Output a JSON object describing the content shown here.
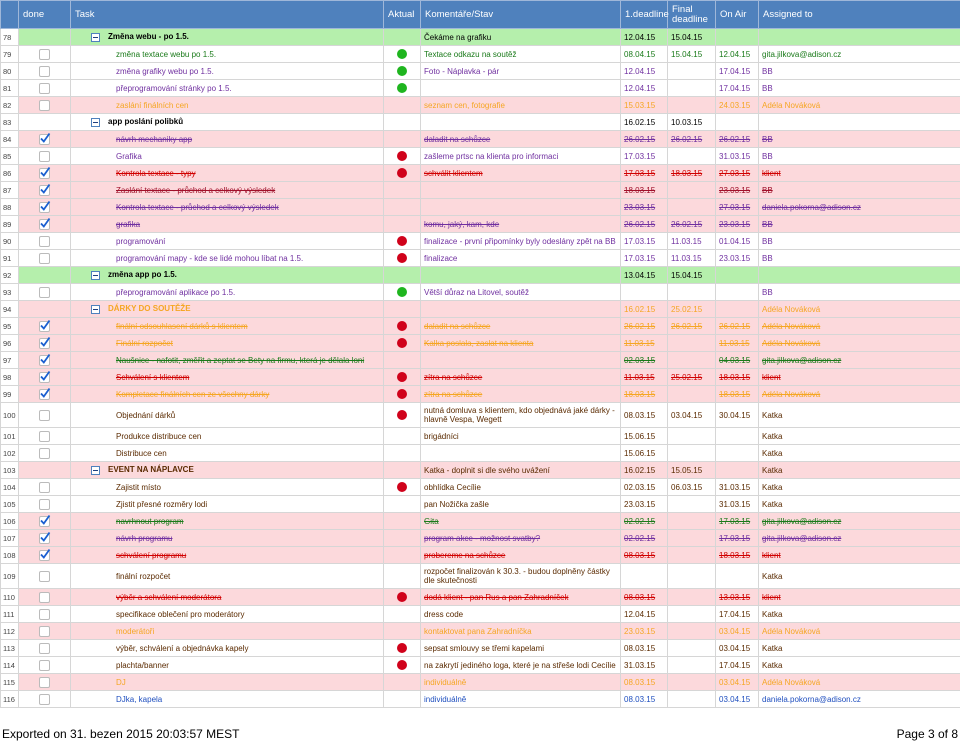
{
  "table": {
    "headers": [
      "done",
      "Task",
      "Aktual",
      "Komentáře/Stav",
      "1.deadline",
      "Final deadline",
      "On Air",
      "Assigned to"
    ],
    "rows": [
      {
        "n": 78,
        "group": true,
        "bg": "green",
        "color": "#000000",
        "task": "Změna webu - po 1.5.",
        "comment": "Čekáme na grafiku",
        "d1": "12.04.15",
        "final": "15.04.15"
      },
      {
        "n": 79,
        "bg": "white",
        "color": "#1a7a1a",
        "dot": "green",
        "task": "změna textace webu po 1.5.",
        "comment": "Textace odkazu na soutěž",
        "d1": "08.04.15",
        "final": "15.04.15",
        "air": "12.04.15",
        "who": "gita.jilkova@adison.cz"
      },
      {
        "n": 80,
        "bg": "white",
        "color": "#7030a0",
        "dot": "green",
        "task": "změna grafiky webu po 1.5.",
        "comment": "Foto - Náplavka - pár",
        "d1": "12.04.15",
        "air": "17.04.15",
        "who": "BB"
      },
      {
        "n": 81,
        "bg": "white",
        "color": "#7030a0",
        "dot": "green",
        "task": "přeprogramování stránky po 1.5.",
        "d1": "12.04.15",
        "air": "17.04.15",
        "who": "BB"
      },
      {
        "n": 82,
        "bg": "pink",
        "color": "#f5a623",
        "task": "zaslání finálních cen",
        "comment": "seznam cen, fotografie",
        "d1": "15.03.15",
        "air": "24.03.15",
        "who": "Adéla Nováková"
      },
      {
        "n": 83,
        "group": true,
        "bg": "white",
        "color": "#000000",
        "task": "app poslání polibků",
        "d1": "16.02.15",
        "final": "10.03.15"
      },
      {
        "n": 84,
        "done": true,
        "strike": true,
        "bg": "pink",
        "color": "#7030a0",
        "task": "návrh mechaniky app",
        "comment": "daladit na schůzce",
        "d1": "26.02.15",
        "final": "26.02.15",
        "air": "26.02.15",
        "who": "BB"
      },
      {
        "n": 85,
        "bg": "white",
        "color": "#7030a0",
        "dot": "red",
        "task": "Grafika",
        "comment": "zašleme prtsc na klienta pro informaci",
        "d1": "17.03.15",
        "air": "31.03.15",
        "who": "BB"
      },
      {
        "n": 86,
        "done": true,
        "strike": true,
        "bg": "pink",
        "color": "#d00000",
        "dot": "red",
        "task": "Kontrola textace - typy",
        "comment": "schválit klientem",
        "d1": "17.03.15",
        "final": "18.03.15",
        "air": "27.03.15",
        "who": "klient"
      },
      {
        "n": 87,
        "done": true,
        "strike": true,
        "bg": "pink",
        "color": "#a0102a",
        "task": "Zaslání textace - průchod a celkový výsledek",
        "d1": "18.03.15",
        "air": "23.03.15",
        "who": "BB"
      },
      {
        "n": 88,
        "done": true,
        "strike": true,
        "bg": "pink",
        "color": "#7030a0",
        "task": "Kontrola textace - průchod a celkový výsledek",
        "d1": "23.03.15",
        "air": "27.03.15",
        "who": "daniela.pokorna@adison.cz"
      },
      {
        "n": 89,
        "done": true,
        "strike": true,
        "bg": "pink",
        "color": "#7030a0",
        "task": "grafika",
        "comment": "komu, jaký, kam, kde",
        "d1": "26.02.15",
        "final": "26.02.15",
        "air": "23.03.15",
        "who": "BB"
      },
      {
        "n": 90,
        "bg": "white",
        "color": "#7030a0",
        "dot": "red",
        "task": "programování",
        "comment": "finalizace - první připomínky byly odeslány zpět na BB",
        "d1": "17.03.15",
        "final": "11.03.15",
        "air": "01.04.15",
        "who": "BB"
      },
      {
        "n": 91,
        "bg": "white",
        "color": "#7030a0",
        "dot": "red",
        "task": "programování mapy - kde se lidé mohou líbat na 1.5.",
        "comment": "finalizace",
        "d1": "17.03.15",
        "final": "11.03.15",
        "air": "23.03.15",
        "who": "BB"
      },
      {
        "n": 92,
        "group": true,
        "bg": "green",
        "color": "#000000",
        "task": "změna app po 1.5.",
        "d1": "13.04.15",
        "final": "15.04.15"
      },
      {
        "n": 93,
        "bg": "white",
        "color": "#7030a0",
        "dot": "green",
        "task": "přeprogramování aplikace po 1.5.",
        "comment": "Větší důraz na Litovel, soutěž",
        "who": "BB"
      },
      {
        "n": 94,
        "group": true,
        "bg": "pink",
        "color": "#f5a623",
        "task": "DÁRKY DO SOUTĚŽE",
        "d1": "16.02.15",
        "final": "25.02.15",
        "who": "Adéla Nováková"
      },
      {
        "n": 95,
        "done": true,
        "strike": true,
        "bg": "pink",
        "color": "#f5a623",
        "dot": "red",
        "task": "finální odsouhlasení dárků s klientem",
        "comment": "daladit na schůzce",
        "d1": "26.02.15",
        "final": "26.02.15",
        "air": "26.02.15",
        "who": "Adéla Nováková"
      },
      {
        "n": 96,
        "done": true,
        "strike": true,
        "bg": "pink",
        "color": "#f5a623",
        "dot": "red",
        "task": "Finální rozpočet",
        "comment": "Kalka poslala, zaslat na klienta",
        "d1": "11.03.15",
        "air": "11.03.15",
        "who": "Adéla Nováková"
      },
      {
        "n": 97,
        "done": true,
        "strike": true,
        "bg": "pink",
        "color": "#1a7a1a",
        "task": "Naušnice - nafotit, změřit a zeptat se Bety na firmu, která je dělala loni",
        "d1": "02.03.15",
        "air": "04.03.15",
        "who": "gita.jilkova@adison.cz"
      },
      {
        "n": 98,
        "done": true,
        "strike": true,
        "bg": "pink",
        "color": "#d00000",
        "dot": "red",
        "task": "Schválení s klientem",
        "comment": "zítra na schůzce",
        "d1": "11.03.15",
        "final": "25.02.15",
        "air": "18.03.15",
        "who": "klient"
      },
      {
        "n": 99,
        "done": true,
        "strike": true,
        "bg": "pink",
        "color": "#f5a623",
        "dot": "red",
        "task": "Kompletace finálních cen ze všechny dárky",
        "comment": "zítra na schůzce",
        "d1": "18.03.15",
        "air": "18.03.15",
        "who": "Adéla Nováková"
      },
      {
        "n": 100,
        "tall": true,
        "bg": "white",
        "color": "#5a2a00",
        "dot": "red",
        "task": "Objednání dárků",
        "comment": "nutná domluva s klientem, kdo objednává jaké dárky - hlavně Vespa, Wegett",
        "d1": "08.03.15",
        "final": "03.04.15",
        "air": "30.04.15",
        "who": "Katka"
      },
      {
        "n": 101,
        "bg": "white",
        "color": "#5a2a00",
        "task": "Produkce distribuce cen",
        "comment": "brigádníci",
        "d1": "15.06.15",
        "who": "Katka"
      },
      {
        "n": 102,
        "bg": "white",
        "color": "#5a2a00",
        "task": "Distribuce cen",
        "d1": "15.06.15",
        "who": "Katka"
      },
      {
        "n": 103,
        "group": true,
        "bg": "pink",
        "color": "#5a2a00",
        "task": "EVENT NA NÁPLAVCE",
        "comment": "Katka - doplnit si dle svého uvážení",
        "d1": "16.02.15",
        "final": "15.05.15",
        "who": "Katka"
      },
      {
        "n": 104,
        "bg": "white",
        "color": "#5a2a00",
        "dot": "red",
        "task": "Zajistit místo",
        "comment": "obhlídka Cecílie",
        "d1": "02.03.15",
        "final": "06.03.15",
        "air": "31.03.15",
        "who": "Katka"
      },
      {
        "n": 105,
        "bg": "white",
        "color": "#5a2a00",
        "task": "Zjistit přesné rozměry lodi",
        "comment": "pan Nožička zašle",
        "d1": "23.03.15",
        "air": "31.03.15",
        "who": "Katka"
      },
      {
        "n": 106,
        "done": true,
        "strike": true,
        "bg": "pink",
        "color": "#1a7a1a",
        "task": "navrhnout program",
        "comment": "Gita",
        "d1": "02.02.15",
        "air": "17.03.15",
        "who": "gita.jilkova@adison.cz"
      },
      {
        "n": 107,
        "done": true,
        "strike": true,
        "bg": "pink",
        "color": "#7030a0",
        "task": "návrh programu",
        "comment": "program akce - možnost svatby?",
        "d1": "02.02.15",
        "air": "17.03.15",
        "who": "gita.jilkova@adison.cz"
      },
      {
        "n": 108,
        "done": true,
        "strike": true,
        "bg": "pink",
        "color": "#d00000",
        "task": "schválení programu",
        "comment": "probereme na schůzce",
        "d1": "08.03.15",
        "air": "18.03.15",
        "who": "klient"
      },
      {
        "n": 109,
        "tall": true,
        "bg": "white",
        "color": "#5a2a00",
        "task": "finální rozpočet",
        "comment": "rozpočet finalizován k 30.3. - budou doplněny částky dle skutečnosti",
        "who": "Katka"
      },
      {
        "n": 110,
        "strike": true,
        "bg": "pink",
        "color": "#d00000",
        "dot": "red",
        "task": "výběr a schválení moderátora",
        "comment": "dodá klient - pan Rus a pan Zahradníček",
        "d1": "08.03.15",
        "air": "13.03.15",
        "who": "klient"
      },
      {
        "n": 111,
        "bg": "white",
        "color": "#5a2a00",
        "task": "specifikace oblečení pro moderátory",
        "comment": "dress code",
        "d1": "12.04.15",
        "air": "17.04.15",
        "who": "Katka"
      },
      {
        "n": 112,
        "bg": "pink",
        "color": "#f5a623",
        "task": "moderátoři",
        "comment": "kontaktovat pana Zahradníčka",
        "d1": "23.03.15",
        "air": "03.04.15",
        "who": "Adéla Nováková"
      },
      {
        "n": 113,
        "bg": "white",
        "color": "#5a2a00",
        "dot": "red",
        "task": "výběr, schválení a objednávka kapely",
        "comment": "sepsat smlouvy se třemi kapelami",
        "d1": "08.03.15",
        "air": "03.04.15",
        "who": "Katka"
      },
      {
        "n": 114,
        "bg": "white",
        "color": "#5a2a00",
        "dot": "red",
        "task": "plachta/banner",
        "comment": "na zakrytí jediného loga, které je na střeše lodi Cecílie",
        "d1": "31.03.15",
        "air": "17.04.15",
        "who": "Katka"
      },
      {
        "n": 115,
        "bg": "pink",
        "color": "#f5a623",
        "task": "DJ",
        "comment": "individuálně",
        "d1": "08.03.15",
        "air": "03.04.15",
        "who": "Adéla Nováková"
      },
      {
        "n": 116,
        "bg": "white",
        "color": "#1f4fbf",
        "task": "DJka, kapela",
        "comment": "individuálně",
        "d1": "08.03.15",
        "air": "03.04.15",
        "who": "daniela.pokorna@adison.cz"
      }
    ]
  },
  "footer": {
    "left": "Exported on 31. bezen 2015 20:03:57 MEST",
    "right": "Page 3 of 8"
  }
}
